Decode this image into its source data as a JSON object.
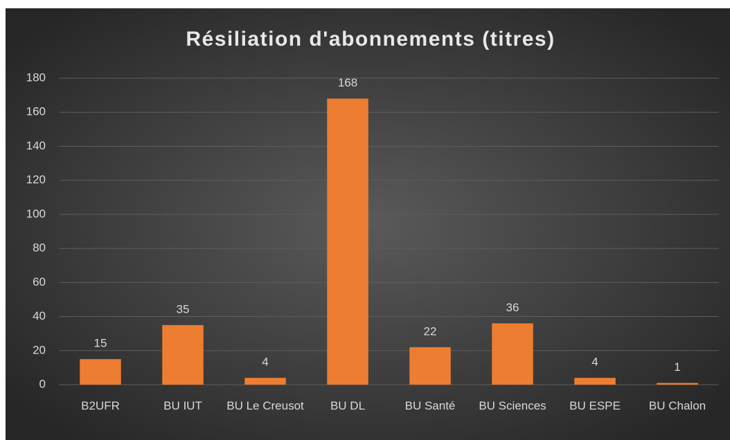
{
  "chart_data": {
    "type": "bar",
    "title": "Résiliation d'abonnements (titres)",
    "categories": [
      "B2UFR",
      "BU IUT",
      "BU Le Creusot",
      "BU DL",
      "BU Santé",
      "BU Sciences",
      "BU ESPE",
      "BU Chalon"
    ],
    "values": [
      15,
      35,
      4,
      168,
      22,
      36,
      4,
      1
    ],
    "color": "#ed7d31",
    "ylim": [
      0,
      180
    ],
    "yticks": [
      0,
      20,
      40,
      60,
      80,
      100,
      120,
      140,
      160,
      180
    ],
    "grid": true
  }
}
